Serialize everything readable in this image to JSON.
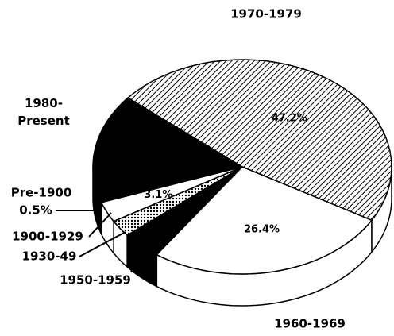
{
  "chart_data": {
    "type": "pie",
    "three_d": true,
    "categories": [
      "1970-1979",
      "1960-1969",
      "1950-1959",
      "1930-49",
      "1900-1929",
      "Pre-1900",
      "1980- Present"
    ],
    "values": [
      47.2,
      26.4,
      4.3,
      2.5,
      3.1,
      0.5,
      16
    ],
    "value_labels": [
      "47.2%",
      "26.4%",
      null,
      null,
      "3.1%",
      "0.5%",
      null
    ],
    "colors": [
      "#ffffff",
      "#ffffff",
      "#000000",
      "#ffffff",
      "#ffffff",
      "#000000",
      "#000000"
    ],
    "patterns": [
      "hatch",
      "solid",
      "solid",
      "dots",
      "solid",
      "solid",
      "solid"
    ]
  }
}
